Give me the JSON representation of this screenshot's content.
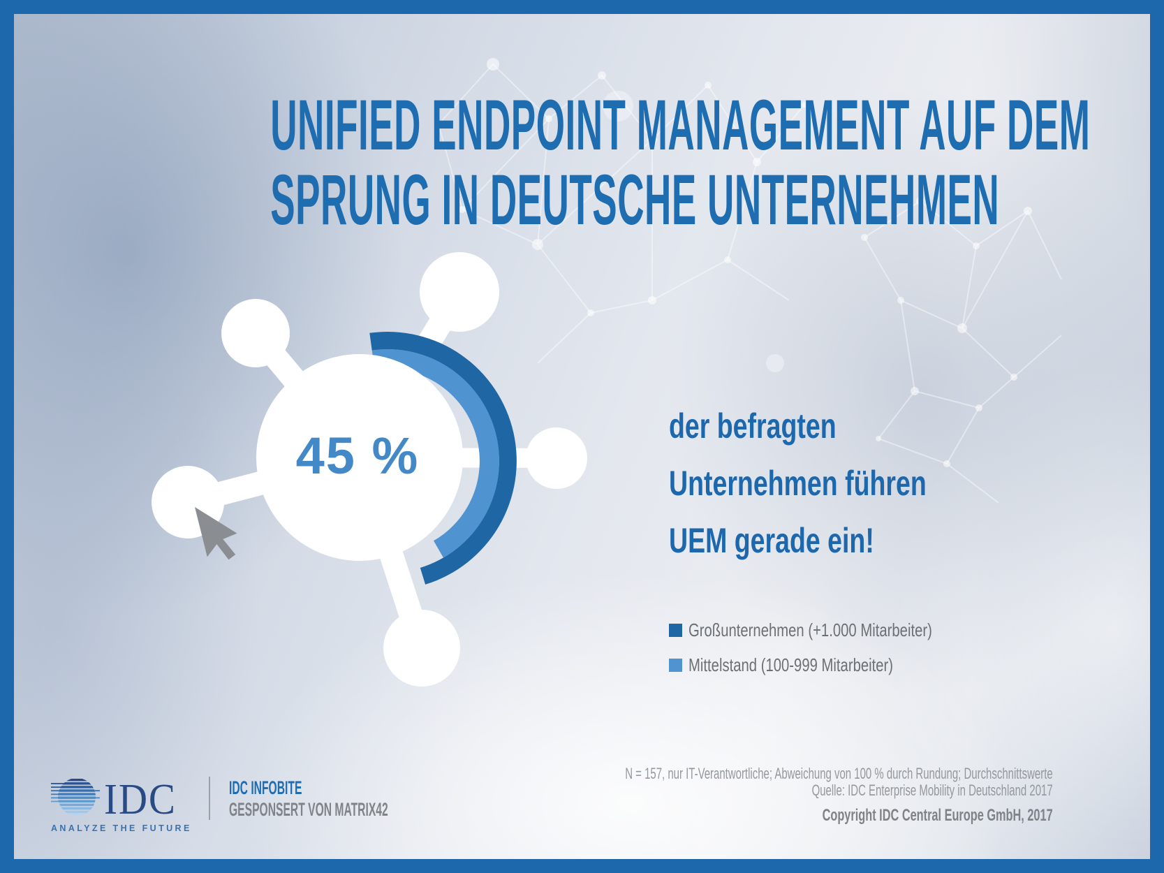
{
  "title": {
    "line1": "UNIFIED ENDPOINT MANAGEMENT AUF DEM",
    "line2": "SPRUNG IN DEUTSCHE UNTERNEHMEN",
    "color": "#1e6db1"
  },
  "chart": {
    "center_value": "45 %",
    "statement": {
      "line1": "der befragten",
      "line2": "Unternehmen führen",
      "line3": "UEM gerade ein!"
    },
    "legend": [
      {
        "label": "Großunternehmen (+1.000 Mitarbeiter)",
        "color": "#1f66a5"
      },
      {
        "label": "Mittelstand (100-999 Mitarbeiter)",
        "color": "#4f93d0"
      }
    ],
    "arc": {
      "dark_color": "#1f66a5",
      "light_color": "#4f93d0",
      "start_deg": -8,
      "dark_end_deg": 163,
      "light_end_deg": 150
    },
    "value_color": "#4389c8"
  },
  "chart_data": {
    "type": "pie",
    "subtype": "partial-donut-gauge",
    "center_value_label": "45 %",
    "value_percent": 45,
    "statement": "der befragten Unternehmen führen UEM gerade ein!",
    "series": [
      {
        "name": "Großunternehmen (+1.000 Mitarbeiter)",
        "color": "#1f66a5",
        "ring": "outer",
        "arc_sweep_deg": 171
      },
      {
        "name": "Mittelstand (100-999 Mitarbeiter)",
        "color": "#4f93d0",
        "ring": "inner",
        "arc_sweep_deg": 158
      }
    ],
    "legend_position": "right",
    "note": "N = 157, nur IT-Verantwortliche; Abweichung von 100 % durch Rundung; Durchschnittswerte",
    "source": "Quelle: IDC Enterprise Mobility in Deutschland 2017"
  },
  "footer": {
    "idc_logo": {
      "wordmark": "IDC",
      "tagline": "ANALYZE THE FUTURE"
    },
    "infobite_label": "IDC INFOBITE",
    "sponsor_label": "GESPONSERT VON MATRIX42",
    "footnote_line1": "N = 157, nur IT-Verantwortliche; Abweichung von 100 % durch Rundung; Durchschnittswerte",
    "footnote_line2": "Quelle: IDC Enterprise Mobility in Deutschland 2017",
    "copyright": "Copyright IDC Central Europe GmbH, 2017"
  },
  "frame": {
    "border_color": "#1d68ad"
  }
}
